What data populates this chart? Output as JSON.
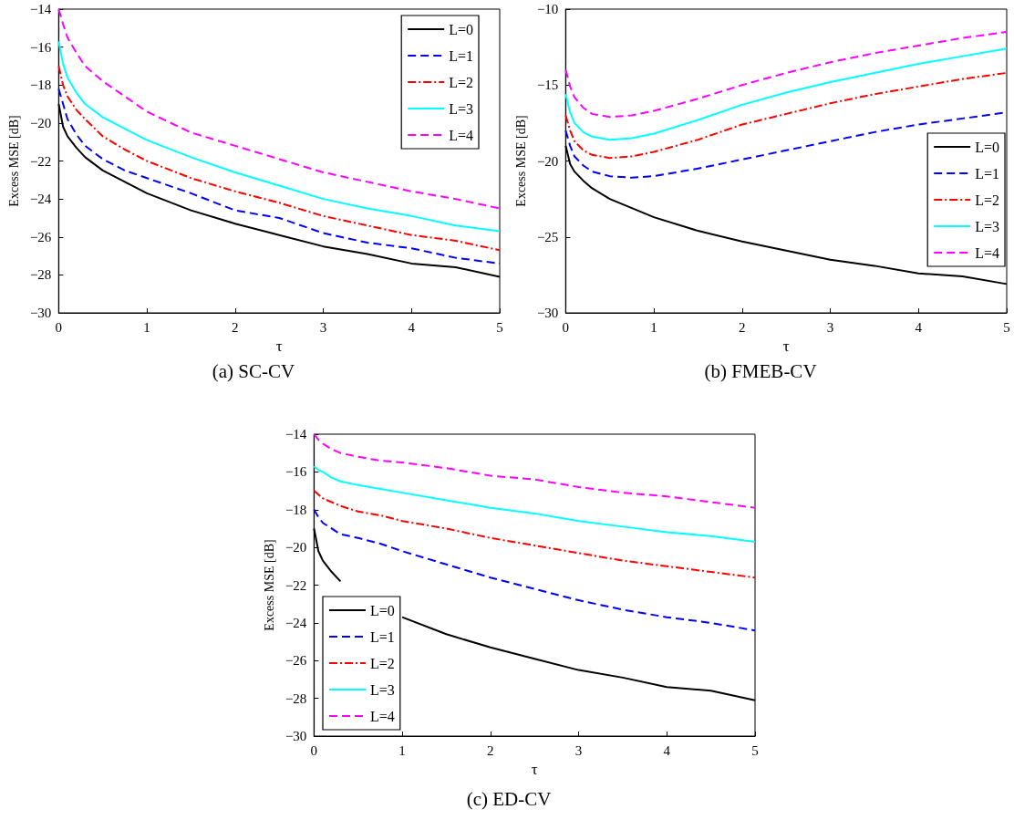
{
  "chart_data": [
    {
      "type": "line",
      "title": "(a) SC-CV",
      "xlabel": "τ",
      "ylabel": "Excess MSE [dB]",
      "legend": "top right",
      "x": [
        0,
        0.05,
        0.1,
        0.2,
        0.3,
        0.5,
        0.75,
        1,
        1.5,
        2,
        2.5,
        3,
        3.5,
        4,
        4.5,
        5
      ],
      "xlim": [
        0,
        5
      ],
      "xticks": [
        0,
        1,
        2,
        3,
        4,
        5
      ],
      "ylim": [
        -30,
        -14
      ],
      "yticks": [
        -30,
        -28,
        -26,
        -24,
        -22,
        -20,
        -18,
        -16,
        -14
      ],
      "series": [
        {
          "name": "L=0",
          "color": "#000000",
          "line_style": "solid",
          "values": [
            -19,
            -20.2,
            -20.7,
            -21.3,
            -21.8,
            -22.5,
            -23.1,
            -23.7,
            -24.6,
            -25.3,
            -25.9,
            -26.5,
            -26.9,
            -27.4,
            -27.6,
            -28.1
          ]
        },
        {
          "name": "L=1",
          "color": "#0000ff",
          "line_style": "dashed",
          "values": [
            -18.2,
            -19.0,
            -19.8,
            -20.6,
            -21.2,
            -21.9,
            -22.5,
            -22.9,
            -23.7,
            -24.6,
            -25.0,
            -25.8,
            -26.3,
            -26.6,
            -27.1,
            -27.4
          ]
        },
        {
          "name": "L=2",
          "color": "#ff0000",
          "line_style": "dashdot",
          "values": [
            -17,
            -18,
            -18.6,
            -19.3,
            -19.8,
            -20.7,
            -21.4,
            -22.0,
            -22.9,
            -23.6,
            -24.2,
            -24.9,
            -25.4,
            -25.9,
            -26.2,
            -26.7
          ]
        },
        {
          "name": "L=3",
          "color": "#00ffff",
          "line_style": "solid",
          "values": [
            -15.7,
            -16.9,
            -17.6,
            -18.4,
            -19.0,
            -19.7,
            -20.3,
            -20.9,
            -21.8,
            -22.6,
            -23.3,
            -24.0,
            -24.5,
            -24.9,
            -25.4,
            -25.7
          ]
        },
        {
          "name": "L=4",
          "color": "#ff00ff",
          "line_style": "dashed",
          "values": [
            -14,
            -14.8,
            -15.5,
            -16.3,
            -17.0,
            -17.8,
            -18.6,
            -19.4,
            -20.5,
            -21.2,
            -21.9,
            -22.6,
            -23.1,
            -23.6,
            -24.0,
            -24.5
          ]
        }
      ]
    },
    {
      "type": "line",
      "title": "(b) FMEB-CV",
      "xlabel": "τ",
      "ylabel": "Excess MSE [dB]",
      "legend": "bottom right",
      "x": [
        0,
        0.05,
        0.1,
        0.2,
        0.3,
        0.5,
        0.75,
        1,
        1.5,
        2,
        2.5,
        3,
        3.5,
        4,
        4.5,
        5
      ],
      "xlim": [
        0,
        5
      ],
      "xticks": [
        0,
        1,
        2,
        3,
        4,
        5
      ],
      "ylim": [
        -30,
        -10
      ],
      "yticks": [
        -30,
        -25,
        -20,
        -15,
        -10
      ],
      "series": [
        {
          "name": "L=0",
          "color": "#000000",
          "line_style": "solid",
          "values": [
            -19,
            -20.2,
            -20.7,
            -21.3,
            -21.8,
            -22.5,
            -23.1,
            -23.7,
            -24.6,
            -25.3,
            -25.9,
            -26.5,
            -26.9,
            -27.4,
            -27.6,
            -28.1
          ]
        },
        {
          "name": "L=1",
          "color": "#0000ff",
          "line_style": "dashed",
          "values": [
            -18,
            -19.0,
            -19.7,
            -20.3,
            -20.7,
            -21.0,
            -21.1,
            -21.0,
            -20.5,
            -19.9,
            -19.3,
            -18.7,
            -18.1,
            -17.6,
            -17.2,
            -16.8
          ]
        },
        {
          "name": "L=2",
          "color": "#ff0000",
          "line_style": "dashdot",
          "values": [
            -17,
            -18.0,
            -18.7,
            -19.3,
            -19.6,
            -19.8,
            -19.7,
            -19.4,
            -18.6,
            -17.6,
            -16.9,
            -16.2,
            -15.6,
            -15.1,
            -14.6,
            -14.2
          ]
        },
        {
          "name": "L=3",
          "color": "#00ffff",
          "line_style": "solid",
          "values": [
            -15.6,
            -16.8,
            -17.5,
            -18.1,
            -18.4,
            -18.6,
            -18.5,
            -18.2,
            -17.3,
            -16.3,
            -15.5,
            -14.8,
            -14.2,
            -13.6,
            -13.1,
            -12.6
          ]
        },
        {
          "name": "L=4",
          "color": "#ff00ff",
          "line_style": "dashed",
          "values": [
            -14,
            -15.1,
            -15.8,
            -16.5,
            -16.9,
            -17.1,
            -17.0,
            -16.7,
            -15.9,
            -15.0,
            -14.2,
            -13.5,
            -12.9,
            -12.4,
            -11.9,
            -11.5
          ]
        }
      ]
    },
    {
      "type": "line",
      "title": "(c) ED-CV",
      "xlabel": "τ",
      "ylabel": "Excess MSE [dB]",
      "legend": "bottom left",
      "x": [
        0,
        0.05,
        0.1,
        0.2,
        0.3,
        0.5,
        0.75,
        1,
        1.5,
        2,
        2.5,
        3,
        3.5,
        4,
        4.5,
        5
      ],
      "xlim": [
        0,
        5
      ],
      "xticks": [
        0,
        1,
        2,
        3,
        4,
        5
      ],
      "ylim": [
        -30,
        -14
      ],
      "yticks": [
        -30,
        -28,
        -26,
        -24,
        -22,
        -20,
        -18,
        -16,
        -14
      ],
      "series": [
        {
          "name": "L=0",
          "color": "#000000",
          "line_style": "solid",
          "values": [
            -19,
            -20.2,
            -20.7,
            -21.3,
            -21.8,
            null,
            null,
            -23.7,
            -24.6,
            -25.3,
            -25.9,
            -26.5,
            -26.9,
            -27.4,
            -27.6,
            -28.1
          ]
        },
        {
          "name": "L=1",
          "color": "#0000ff",
          "line_style": "dashed",
          "values": [
            -18,
            -18.4,
            -18.7,
            -19.0,
            -19.3,
            -19.5,
            -19.8,
            -20.2,
            -20.9,
            -21.6,
            -22.2,
            -22.8,
            -23.3,
            -23.7,
            -24.0,
            -24.4
          ]
        },
        {
          "name": "L=2",
          "color": "#ff0000",
          "line_style": "dashdot",
          "values": [
            -17,
            -17.2,
            -17.4,
            -17.6,
            -17.8,
            -18.1,
            -18.3,
            -18.6,
            -19.0,
            -19.5,
            -19.9,
            -20.3,
            -20.7,
            -21.0,
            -21.3,
            -21.6
          ]
        },
        {
          "name": "L=3",
          "color": "#00ffff",
          "line_style": "solid",
          "values": [
            -15.7,
            -15.9,
            -16.0,
            -16.3,
            -16.5,
            -16.7,
            -16.9,
            -17.1,
            -17.5,
            -17.9,
            -18.2,
            -18.6,
            -18.9,
            -19.2,
            -19.4,
            -19.7
          ]
        },
        {
          "name": "L=4",
          "color": "#ff00ff",
          "line_style": "dashed",
          "values": [
            -14,
            -14.3,
            -14.5,
            -14.8,
            -15.0,
            -15.2,
            -15.4,
            -15.5,
            -15.8,
            -16.2,
            -16.4,
            -16.8,
            -17.1,
            -17.3,
            -17.6,
            -17.9
          ]
        }
      ]
    }
  ]
}
